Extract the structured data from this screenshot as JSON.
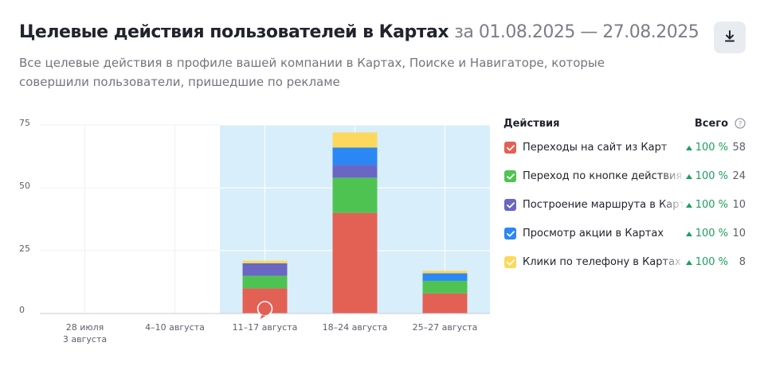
{
  "header": {
    "title": "Целевые действия пользователей в Картах",
    "period": "за 01.08.2025 — 27.08.2025",
    "subtitle": "Все целевые действия в профиле вашей компании в Картах, Поиске и Навигаторе, которые совершили пользователи, пришедшие по рекламе",
    "download_icon": "download-icon"
  },
  "legend": {
    "actions_label": "Действия",
    "total_label": "Всего",
    "help_icon": "question-circle-icon",
    "items": [
      {
        "name": "Переходы на сайт из Карт",
        "delta": "100 %",
        "total": "58",
        "color": "#e36055"
      },
      {
        "name": "Переход по кнопке действия в Картах",
        "delta": "100 %",
        "total": "24",
        "color": "#4fc352"
      },
      {
        "name": "Построение маршрута в Картах",
        "delta": "100 %",
        "total": "10",
        "color": "#6a66c4"
      },
      {
        "name": "Просмотр акции в Картах",
        "delta": "100 %",
        "total": "10",
        "color": "#2b87f4"
      },
      {
        "name": "Клики по телефону в Картах",
        "delta": "100 %",
        "total": "8",
        "color": "#fdd85c"
      }
    ]
  },
  "chart_data": {
    "type": "bar",
    "stacked": true,
    "categories": [
      "28 июля\n3 августа",
      "4–10 августа",
      "11–17 августа",
      "18–24 августа",
      "25–27 августа"
    ],
    "series": [
      {
        "name": "Переходы на сайт из Карт",
        "color": "#e36055",
        "values": [
          0,
          0,
          10,
          40,
          8
        ]
      },
      {
        "name": "Переход по кнопке действия в Картах",
        "color": "#4fc352",
        "values": [
          0,
          0,
          5,
          14,
          5
        ]
      },
      {
        "name": "Построение маршрута в Картах",
        "color": "#6a66c4",
        "values": [
          0,
          0,
          5,
          5,
          0
        ]
      },
      {
        "name": "Просмотр акции в Картах",
        "color": "#2b87f4",
        "values": [
          0,
          0,
          0,
          7,
          3
        ]
      },
      {
        "name": "Клики по телефону в Картах",
        "color": "#fdd85c",
        "values": [
          0,
          0,
          1,
          6,
          1
        ]
      }
    ],
    "yticks": [
      0,
      25,
      50,
      75
    ],
    "ylim": [
      0,
      75
    ],
    "grid": true,
    "selected_range": [
      "11–17 августа",
      "25–27 августа"
    ],
    "highlight_color": "#d8eefa",
    "marker_category": "11–17 августа"
  }
}
